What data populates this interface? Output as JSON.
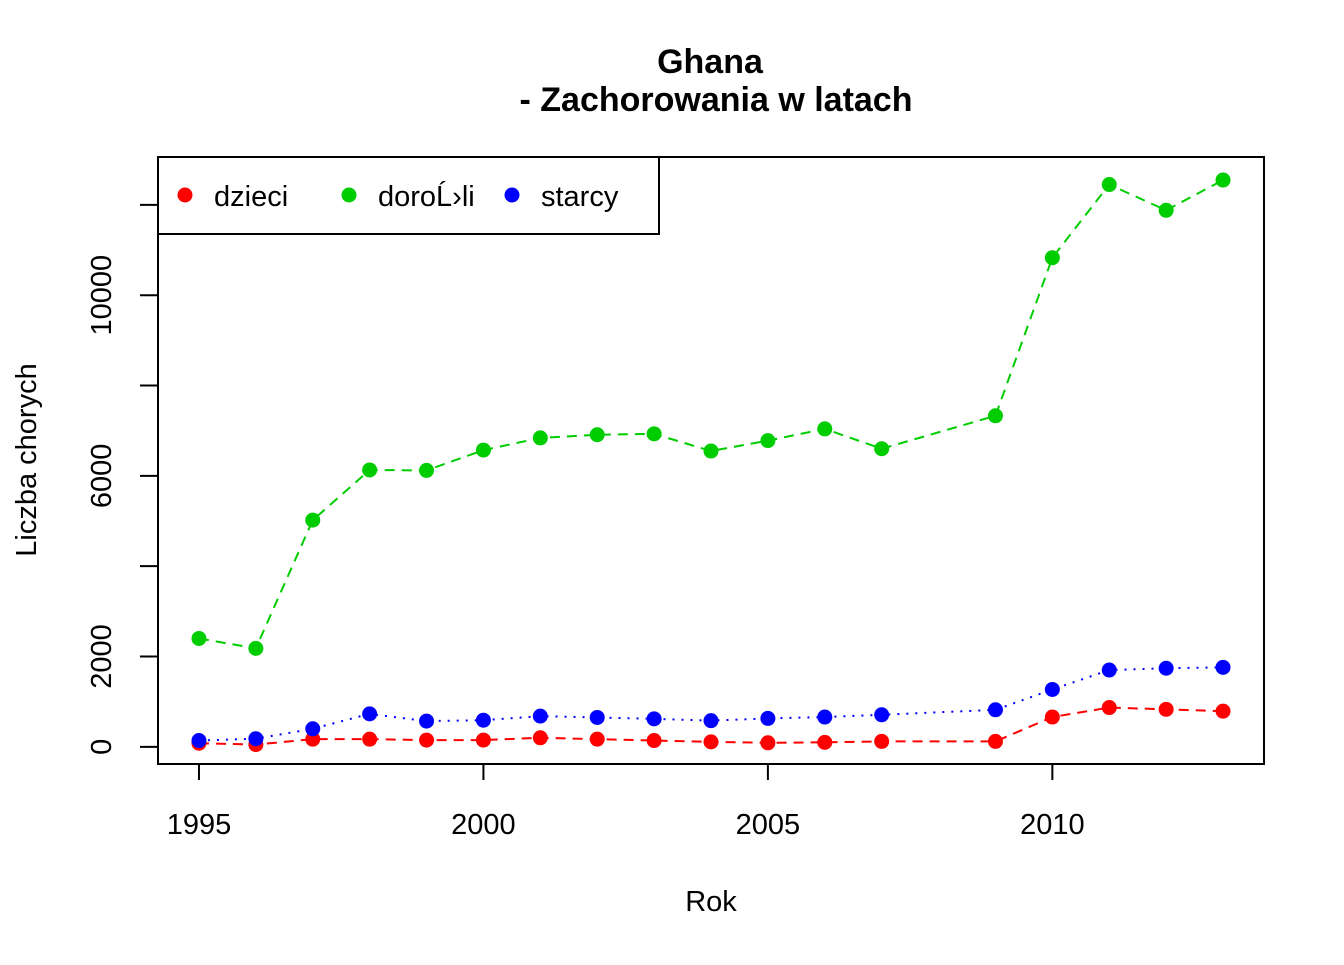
{
  "chart_data": {
    "type": "line",
    "title_line1": "Ghana",
    "title_line2": "- Zachorowania w latach",
    "xlabel": "Rok",
    "ylabel": "Liczba chorych",
    "xlim": [
      1994.28,
      2013.72
    ],
    "ylim": [
      -380,
      13060
    ],
    "x_ticks": [
      1995,
      2000,
      2005,
      2010
    ],
    "y_ticks": [
      0,
      2000,
      6000,
      10000
    ],
    "y_tick_marks": [
      0,
      2000,
      4000,
      6000,
      8000,
      10000,
      12000
    ],
    "legend_position": "top-left",
    "grid": false,
    "series": [
      {
        "name": "dzieci",
        "color": "#ff0000",
        "line_style": "dashed",
        "points": [
          {
            "x": 1995,
            "y": 80
          },
          {
            "x": 1996,
            "y": 50
          },
          {
            "x": 1997,
            "y": 170
          },
          {
            "x": 1998,
            "y": 170
          },
          {
            "x": 1999,
            "y": 150
          },
          {
            "x": 2000,
            "y": 150
          },
          {
            "x": 2001,
            "y": 200
          },
          {
            "x": 2002,
            "y": 170
          },
          {
            "x": 2003,
            "y": 140
          },
          {
            "x": 2004,
            "y": 110
          },
          {
            "x": 2005,
            "y": 90
          },
          {
            "x": 2006,
            "y": 100
          },
          {
            "x": 2007,
            "y": 120
          },
          {
            "x": 2009,
            "y": 120
          },
          {
            "x": 2010,
            "y": 660
          },
          {
            "x": 2011,
            "y": 870
          },
          {
            "x": 2012,
            "y": 830
          },
          {
            "x": 2013,
            "y": 790
          }
        ]
      },
      {
        "name": "doroĹ›li",
        "color": "#00cd00",
        "line_style": "dashed",
        "points": [
          {
            "x": 1995,
            "y": 2400
          },
          {
            "x": 1996,
            "y": 2180
          },
          {
            "x": 1997,
            "y": 5020
          },
          {
            "x": 1998,
            "y": 6130
          },
          {
            "x": 1999,
            "y": 6120
          },
          {
            "x": 2000,
            "y": 6570
          },
          {
            "x": 2001,
            "y": 6840
          },
          {
            "x": 2002,
            "y": 6910
          },
          {
            "x": 2003,
            "y": 6930
          },
          {
            "x": 2004,
            "y": 6550
          },
          {
            "x": 2005,
            "y": 6780
          },
          {
            "x": 2006,
            "y": 7040
          },
          {
            "x": 2007,
            "y": 6600
          },
          {
            "x": 2009,
            "y": 7330
          },
          {
            "x": 2010,
            "y": 10830
          },
          {
            "x": 2011,
            "y": 12450
          },
          {
            "x": 2012,
            "y": 11880
          },
          {
            "x": 2013,
            "y": 12550
          }
        ]
      },
      {
        "name": "starcy",
        "color": "#0000ff",
        "line_style": "dotted",
        "points": [
          {
            "x": 1995,
            "y": 140
          },
          {
            "x": 1996,
            "y": 180
          },
          {
            "x": 1997,
            "y": 400
          },
          {
            "x": 1998,
            "y": 730
          },
          {
            "x": 1999,
            "y": 570
          },
          {
            "x": 2000,
            "y": 590
          },
          {
            "x": 2001,
            "y": 680
          },
          {
            "x": 2002,
            "y": 650
          },
          {
            "x": 2003,
            "y": 620
          },
          {
            "x": 2004,
            "y": 580
          },
          {
            "x": 2005,
            "y": 630
          },
          {
            "x": 2006,
            "y": 660
          },
          {
            "x": 2007,
            "y": 710
          },
          {
            "x": 2009,
            "y": 820
          },
          {
            "x": 2010,
            "y": 1270
          },
          {
            "x": 2011,
            "y": 1700
          },
          {
            "x": 2012,
            "y": 1740
          },
          {
            "x": 2013,
            "y": 1760
          }
        ]
      }
    ]
  }
}
